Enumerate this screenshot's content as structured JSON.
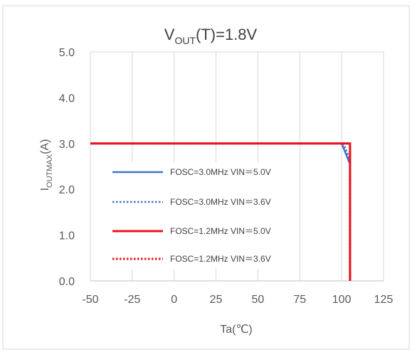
{
  "chart_data": {
    "type": "line",
    "title": {
      "main": "V",
      "sub": "OUT",
      "rest": "(T)=1.8V"
    },
    "xlabel": "Ta(℃)",
    "ylabel": {
      "main": "I",
      "sub": "OUTMAX",
      "rest": "(A)"
    },
    "xlim": [
      -50,
      125
    ],
    "ylim": [
      0,
      5
    ],
    "x_ticks": [
      "-50",
      "-25",
      "0",
      "25",
      "50",
      "75",
      "100",
      "125"
    ],
    "y_ticks": [
      "0.0",
      "1.0",
      "2.0",
      "3.0",
      "4.0",
      "5.0"
    ],
    "grid": {
      "vertical": true,
      "horizontal": false
    },
    "legend_position": "center-left",
    "series": [
      {
        "name": "FOSC=3.0MHz VIN＝5.0V",
        "color": "#4472C4",
        "dash": "solid",
        "points": [
          [
            -50,
            3.0
          ],
          [
            100,
            3.0
          ],
          [
            105,
            2.55
          ],
          [
            105,
            0
          ]
        ]
      },
      {
        "name": "FOSC=3.0MHz VIN＝3.6V",
        "color": "#4472C4",
        "dash": "dotted",
        "points": [
          [
            -50,
            3.0
          ],
          [
            101,
            3.0
          ],
          [
            105,
            2.65
          ],
          [
            105,
            0
          ]
        ]
      },
      {
        "name": "FOSC=1.2MHz VIN＝5.0V",
        "color": "#E8141C",
        "dash": "solid",
        "points": [
          [
            -50,
            3.0
          ],
          [
            105,
            3.0
          ],
          [
            105,
            0
          ]
        ]
      },
      {
        "name": "FOSC=1.2MHz VIN＝3.6V",
        "color": "#E8141C",
        "dash": "dotted",
        "points": [
          [
            -50,
            3.0
          ],
          [
            105,
            3.0
          ],
          [
            105,
            0
          ]
        ]
      }
    ]
  }
}
